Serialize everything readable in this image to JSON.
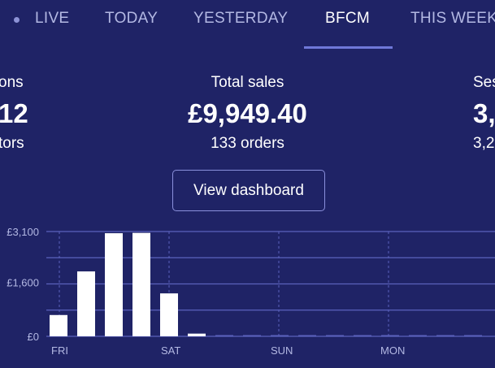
{
  "tabs": [
    {
      "label": "LIVE",
      "active": false
    },
    {
      "label": "TODAY",
      "active": false
    },
    {
      "label": "YESTERDAY",
      "active": false
    },
    {
      "label": "BFCM",
      "active": true
    },
    {
      "label": "THIS WEEK",
      "active": false
    }
  ],
  "metrics": {
    "left": {
      "label": "ons",
      "value": "12",
      "sub": "tors"
    },
    "center": {
      "label": "Total sales",
      "value": "£9,949.40",
      "sub": "133 orders"
    },
    "right": {
      "label": "Ses",
      "value": "3,",
      "sub": "3,2"
    }
  },
  "dashboard_button": {
    "label": "View dashboard"
  },
  "colors": {
    "background": "#1f2366",
    "tab_inactive": "#b3b8e3",
    "tab_underline": "#6f78d8",
    "grid": "#5b62bd",
    "bar": "#ffffff",
    "axis_text": "#b3b8e3"
  },
  "chart_data": {
    "type": "bar",
    "y_tick_labels": [
      "£3,100",
      "£1,600",
      "£0"
    ],
    "y_ticks": [
      3100,
      1600,
      0
    ],
    "ylim": [
      0,
      3100
    ],
    "x_tick_labels": [
      "FRI",
      "SAT",
      "SUN",
      "MON"
    ],
    "bars_per_day": 8,
    "values": [
      630,
      1920,
      3050,
      3060,
      1270,
      80,
      20,
      20,
      20,
      20,
      20,
      20,
      20,
      20,
      20,
      20
    ],
    "grid": true
  }
}
